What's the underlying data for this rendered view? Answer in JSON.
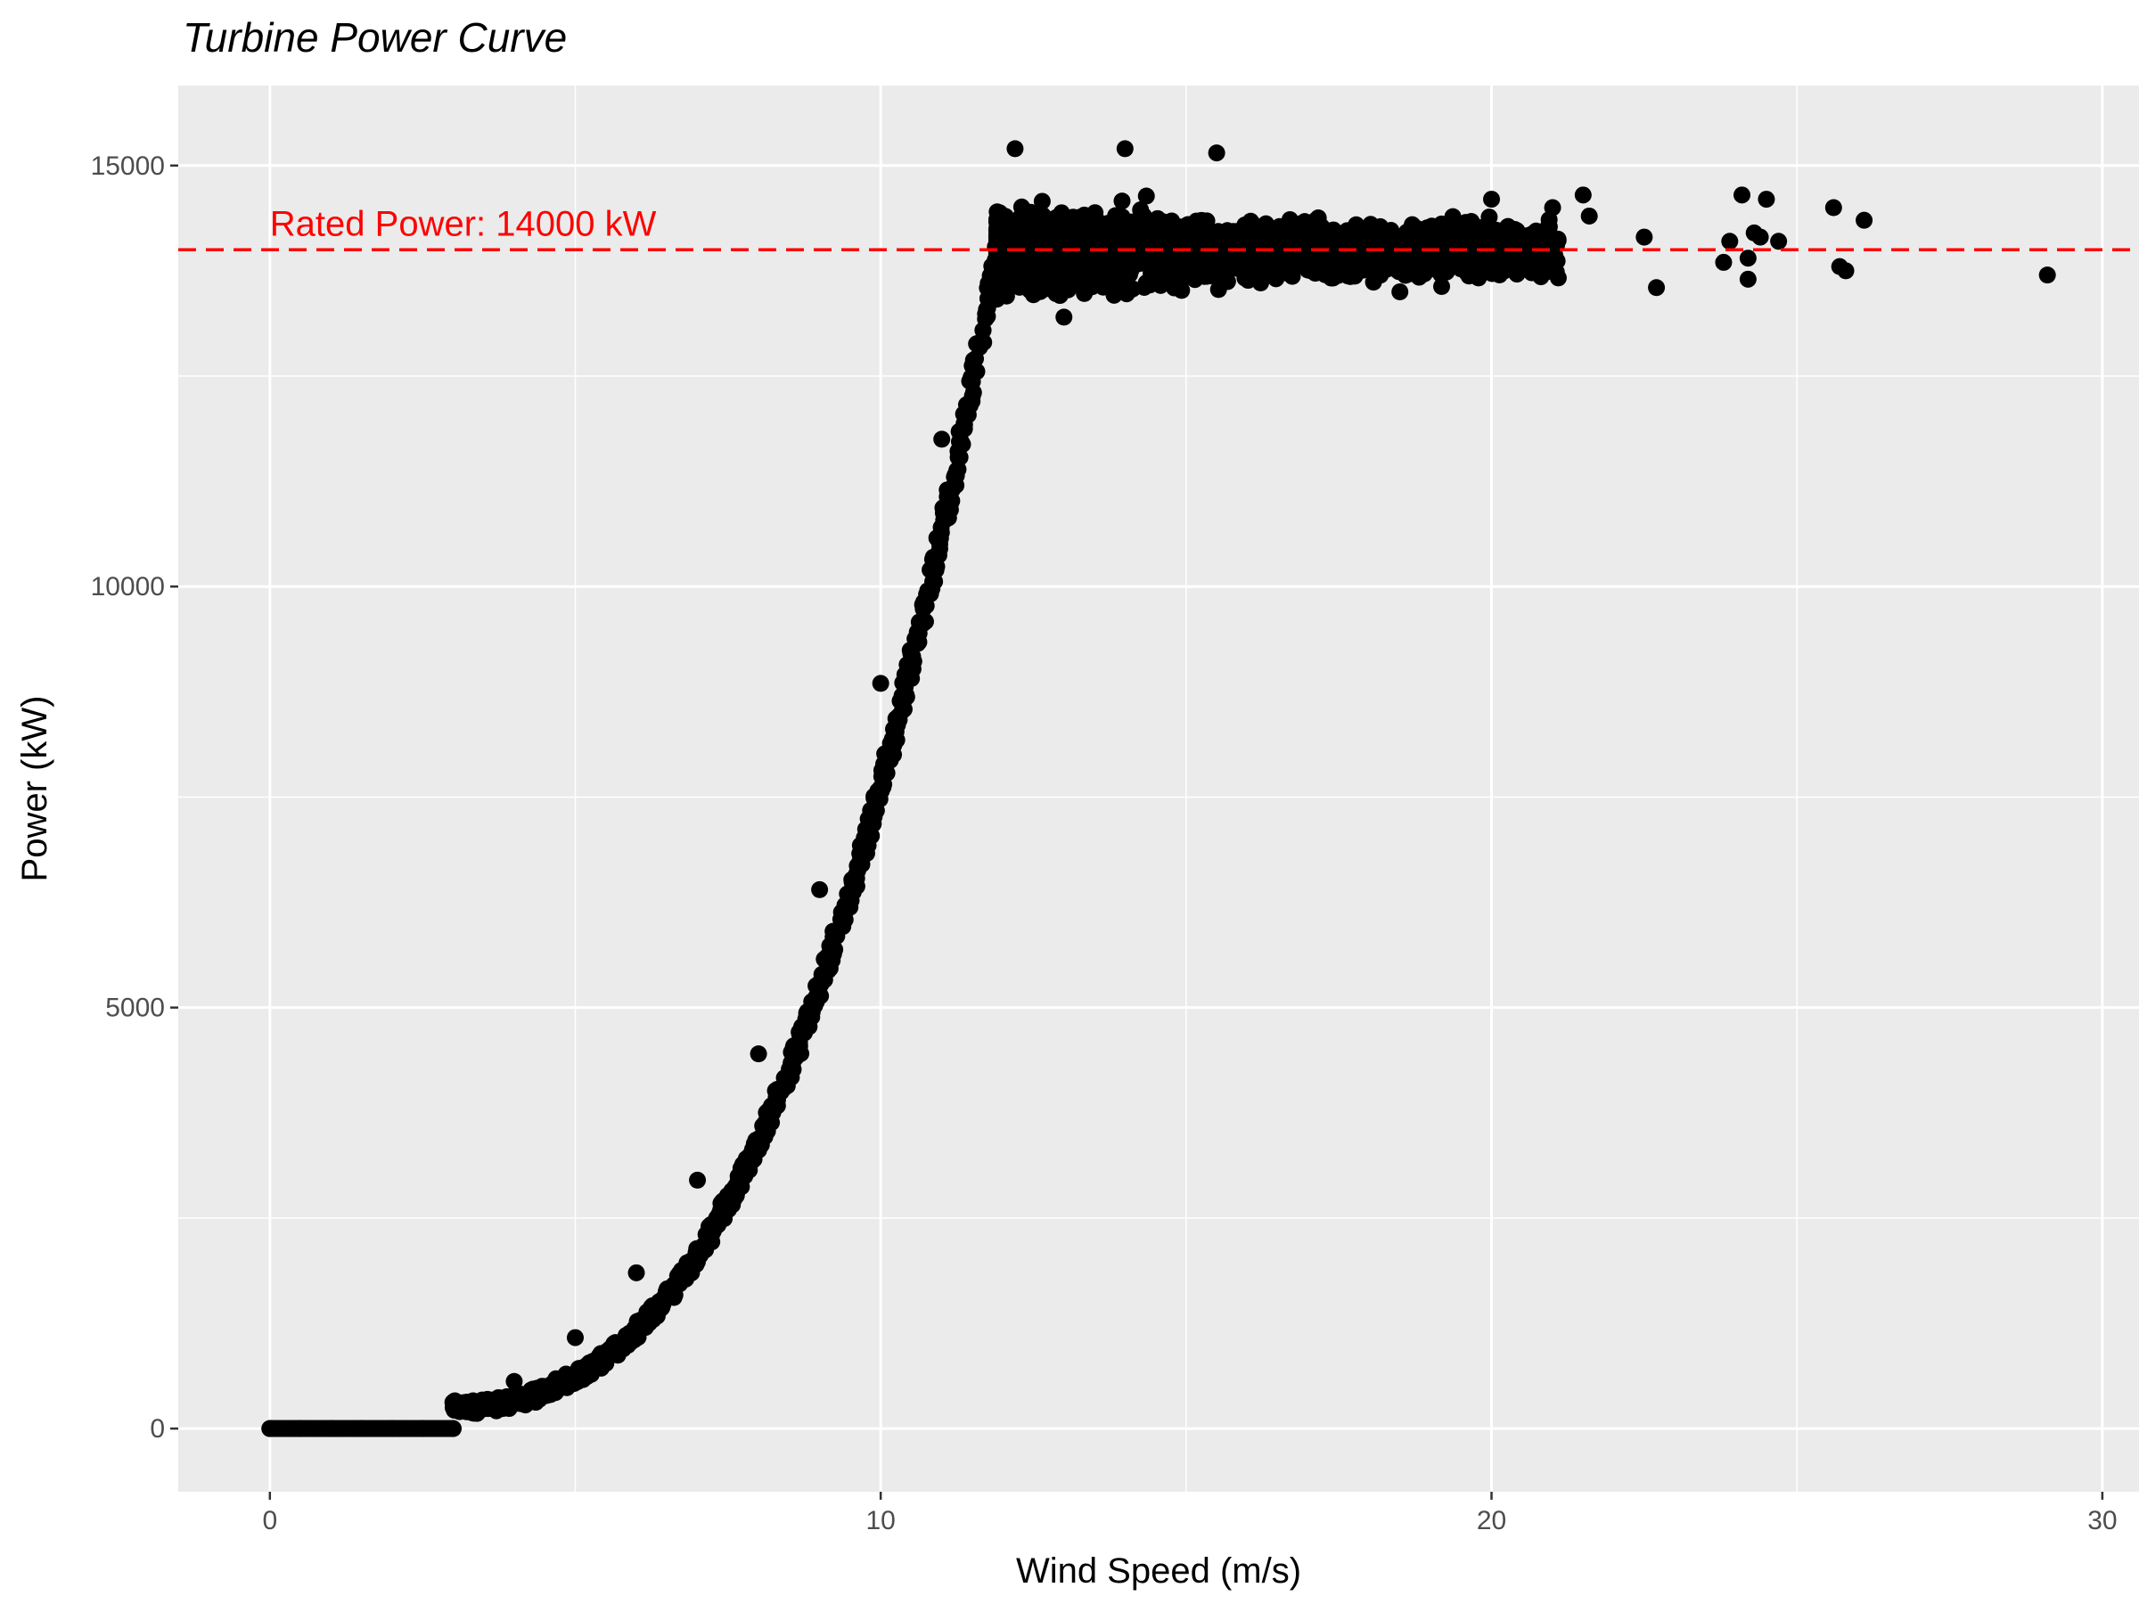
{
  "chart_data": {
    "type": "scatter",
    "title": "Turbine Power Curve",
    "xlabel": "Wind Speed (m/s)",
    "ylabel": "Power (kW)",
    "xlim": [
      -1.5,
      30.6
    ],
    "ylim": [
      -750,
      15950
    ],
    "x_ticks": [
      0,
      10,
      20,
      30
    ],
    "y_ticks": [
      0,
      5000,
      10000,
      15000
    ],
    "grid": true,
    "legend": "none",
    "point_color": "#000000",
    "panel_background": "#ebebeb",
    "reference_line": {
      "y": 14000,
      "label": "Rated Power: 14000 kW",
      "color": "#ff0000",
      "style": "dashed"
    },
    "power_curve": {
      "cut_in_speed": 3,
      "rated_speed": 11.9,
      "rated_power": 14000,
      "power_at_cut_in": 250
    },
    "points": [
      [
        0.0,
        0
      ],
      [
        0.5,
        0
      ],
      [
        1.0,
        0
      ],
      [
        1.5,
        0
      ],
      [
        2.0,
        0
      ],
      [
        2.5,
        0
      ],
      [
        3.0,
        0
      ],
      [
        3.0,
        250
      ],
      [
        4.0,
        560
      ],
      [
        5.0,
        1080
      ],
      [
        6.0,
        1850
      ],
      [
        7.0,
        2950
      ],
      [
        8.0,
        4450
      ],
      [
        9.0,
        6400
      ],
      [
        10.0,
        8850
      ],
      [
        11.0,
        11750
      ],
      [
        11.9,
        14000
      ],
      [
        12.2,
        15200
      ],
      [
        13.0,
        13200
      ],
      [
        14.0,
        15200
      ],
      [
        15.5,
        15150
      ],
      [
        18.5,
        13500
      ],
      [
        20.0,
        14600
      ],
      [
        21.0,
        14500
      ],
      [
        21.5,
        14650
      ],
      [
        21.6,
        14400
      ],
      [
        22.5,
        14150
      ],
      [
        22.7,
        13550
      ],
      [
        23.8,
        13850
      ],
      [
        23.9,
        14100
      ],
      [
        24.1,
        14650
      ],
      [
        24.2,
        13650
      ],
      [
        24.2,
        13900
      ],
      [
        24.3,
        14200
      ],
      [
        24.4,
        14150
      ],
      [
        24.5,
        14600
      ],
      [
        24.7,
        14100
      ],
      [
        25.6,
        14500
      ],
      [
        25.7,
        13800
      ],
      [
        25.8,
        13750
      ],
      [
        26.1,
        14350
      ],
      [
        29.1,
        13700
      ]
    ]
  }
}
